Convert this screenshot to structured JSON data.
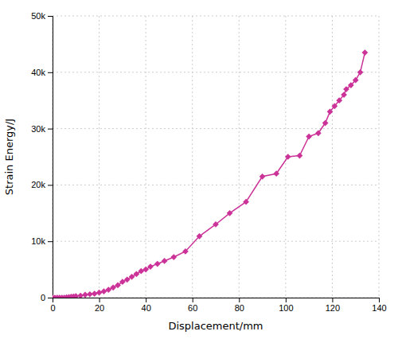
{
  "chart_data": {
    "type": "line",
    "xlabel": "Displacement/mm",
    "ylabel": "Strain Energy/J",
    "x": [
      0,
      1,
      2,
      3,
      4,
      5,
      6,
      7,
      8,
      9,
      10,
      12,
      14,
      16,
      18,
      20,
      22,
      24,
      26,
      28,
      30,
      32,
      34,
      36,
      38,
      40,
      42,
      45,
      48,
      52,
      57,
      63,
      70,
      76,
      83,
      90,
      96,
      101,
      106,
      110,
      114,
      117,
      119,
      121,
      123,
      125,
      126,
      128,
      130,
      132,
      134
    ],
    "values": [
      0,
      0,
      0,
      0,
      0,
      0,
      50,
      100,
      150,
      200,
      250,
      350,
      500,
      600,
      700,
      900,
      1100,
      1400,
      1800,
      2200,
      2800,
      3200,
      3700,
      4200,
      4700,
      5000,
      5500,
      6000,
      6500,
      7200,
      8200,
      10900,
      13000,
      15000,
      17000,
      21500,
      22000,
      25000,
      25200,
      28600,
      29200,
      31000,
      33000,
      34000,
      35000,
      36000,
      37000,
      37700,
      38600,
      40000,
      43500
    ],
    "color": "#CC3399",
    "marker": "diamond",
    "xlim": [
      0,
      140
    ],
    "ylim": [
      0,
      50000
    ],
    "xticks": [
      0,
      20,
      40,
      60,
      80,
      100,
      120,
      140
    ],
    "yticks": [
      0,
      {
        "value": 10000,
        "label": "10k"
      },
      {
        "value": 20000,
        "label": "20k"
      },
      {
        "value": 30000,
        "label": "30k"
      },
      {
        "value": 40000,
        "label": "40k"
      },
      {
        "value": 50000,
        "label": "50k"
      }
    ],
    "grid": true
  }
}
